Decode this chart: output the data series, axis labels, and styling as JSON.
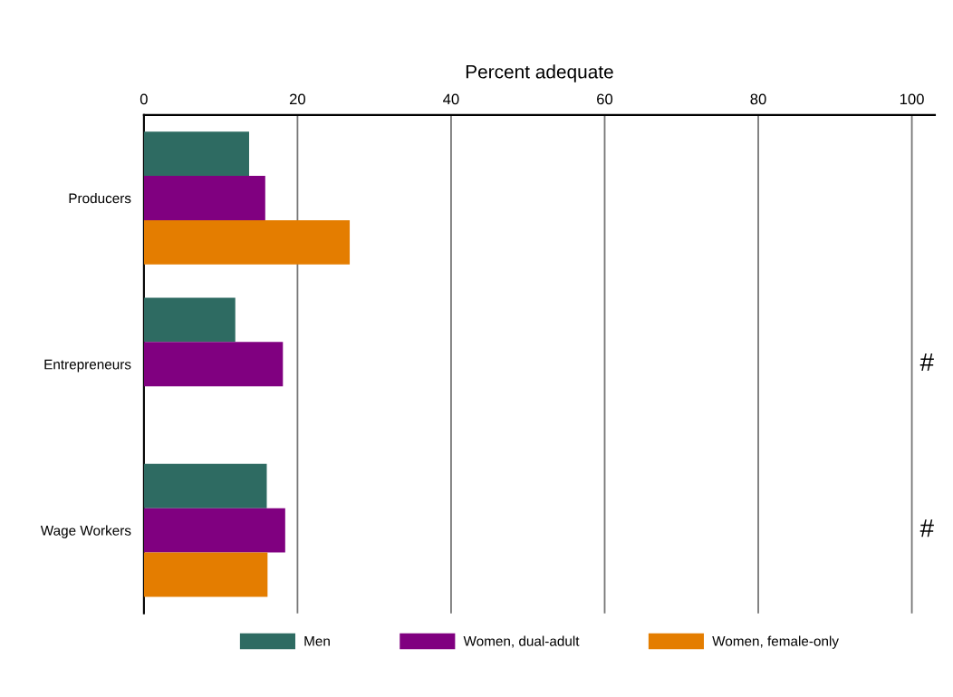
{
  "chart_data": {
    "type": "bar",
    "orientation": "horizontal",
    "xlabel": "Percent adequate",
    "categories": [
      "Producers",
      "Entrepreneurs",
      "Wage Workers"
    ],
    "series": [
      {
        "name": "Men",
        "color": "#2e6b62",
        "values": [
          13.7,
          11.9,
          16.0
        ]
      },
      {
        "name": "Women, dual-adult",
        "color": "#800080",
        "values": [
          15.8,
          18.1,
          18.4
        ]
      },
      {
        "name": "Women, female-only",
        "color": "#e47d00",
        "values": [
          26.8,
          null,
          16.1
        ]
      }
    ],
    "xlim": [
      0,
      103
    ],
    "xticks": [
      0,
      20,
      40,
      60,
      80,
      100
    ],
    "grid": "x",
    "legend": "bottom",
    "annotations": [
      "#",
      "#"
    ]
  }
}
